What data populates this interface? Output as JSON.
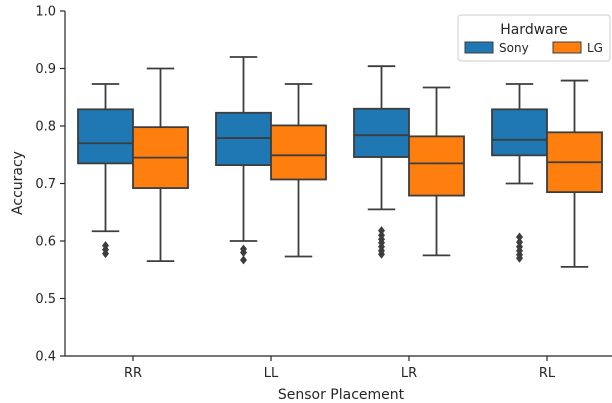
{
  "chart_data": {
    "type": "boxplot",
    "xlabel": "Sensor Placement",
    "ylabel": "Accuracy",
    "ylim": [
      0.4,
      1.0
    ],
    "yticks": [
      "0.4",
      "0.5",
      "0.6",
      "0.7",
      "0.8",
      "0.9",
      "1.0"
    ],
    "categories": [
      "RR",
      "LL",
      "LR",
      "RL"
    ],
    "legend": {
      "title": "Hardware",
      "position": "top-right"
    },
    "series": [
      {
        "name": "Sony",
        "color": "#1f77b4",
        "boxes": [
          {
            "whisker_low": 0.617,
            "q1": 0.735,
            "median": 0.77,
            "q3": 0.829,
            "whisker_high": 0.873,
            "outliers": [
              0.592,
              0.585,
              0.578
            ]
          },
          {
            "whisker_low": 0.6,
            "q1": 0.732,
            "median": 0.779,
            "q3": 0.823,
            "whisker_high": 0.92,
            "outliers": [
              0.586,
              0.58,
              0.567
            ]
          },
          {
            "whisker_low": 0.655,
            "q1": 0.746,
            "median": 0.784,
            "q3": 0.83,
            "whisker_high": 0.904,
            "outliers": [
              0.618,
              0.61,
              0.603,
              0.597,
              0.59,
              0.583,
              0.577
            ]
          },
          {
            "whisker_low": 0.7,
            "q1": 0.749,
            "median": 0.776,
            "q3": 0.829,
            "whisker_high": 0.873,
            "outliers": [
              0.607,
              0.598,
              0.59,
              0.583,
              0.576,
              0.57
            ]
          }
        ]
      },
      {
        "name": "LG",
        "color": "#ff7f0e",
        "boxes": [
          {
            "whisker_low": 0.565,
            "q1": 0.692,
            "median": 0.745,
            "q3": 0.798,
            "whisker_high": 0.9,
            "outliers": []
          },
          {
            "whisker_low": 0.573,
            "q1": 0.707,
            "median": 0.749,
            "q3": 0.801,
            "whisker_high": 0.873,
            "outliers": []
          },
          {
            "whisker_low": 0.575,
            "q1": 0.679,
            "median": 0.735,
            "q3": 0.782,
            "whisker_high": 0.867,
            "outliers": []
          },
          {
            "whisker_low": 0.555,
            "q1": 0.685,
            "median": 0.737,
            "q3": 0.789,
            "whisker_high": 0.879,
            "outliers": []
          }
        ]
      }
    ]
  }
}
